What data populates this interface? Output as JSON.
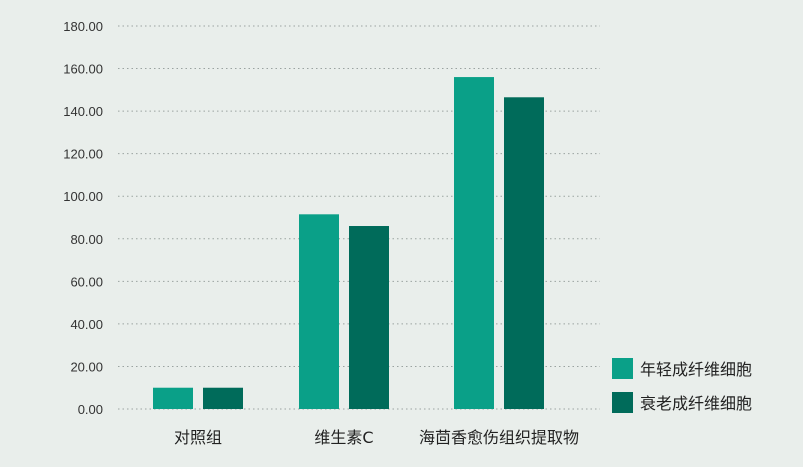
{
  "chart_data": {
    "type": "bar",
    "categories": [
      "对照组",
      "维生素C",
      "海茴香愈伤组织提取物"
    ],
    "series": [
      {
        "name": "年轻成纤维细胞",
        "values": [
          10.0,
          91.5,
          156.0
        ],
        "color": "#0aa088"
      },
      {
        "name": "衰老成纤维细胞",
        "values": [
          10.0,
          86.0,
          146.5
        ],
        "color": "#006b5a"
      }
    ],
    "ylim": [
      0,
      180
    ],
    "yticks": [
      "0.00",
      "20.00",
      "40.00",
      "60.00",
      "80.00",
      "100.00",
      "120.00",
      "140.00",
      "160.00",
      "180.00"
    ],
    "ytick_values": [
      0,
      20,
      40,
      60,
      80,
      100,
      120,
      140,
      160,
      180
    ],
    "grid": "dotted horizontal",
    "legend_position": "bottom-right",
    "title": "",
    "xlabel": "",
    "ylabel": ""
  }
}
